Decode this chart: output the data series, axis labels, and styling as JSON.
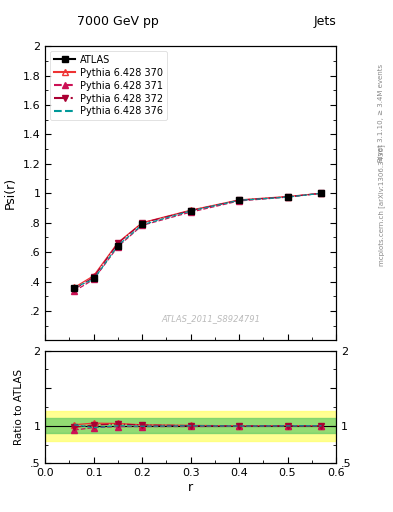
{
  "title": "7000 GeV pp",
  "title_right": "Jets",
  "ylabel_main": "Psi(r)",
  "ylabel_ratio": "Ratio to ATLAS",
  "xlabel": "r",
  "watermark": "ATLAS_2011_S8924791",
  "x_data": [
    0.06,
    0.1,
    0.15,
    0.2,
    0.3,
    0.4,
    0.5,
    0.57
  ],
  "atlas_y": [
    0.355,
    0.425,
    0.645,
    0.79,
    0.88,
    0.955,
    0.975,
    1.0
  ],
  "atlas_yerr": [
    0.008,
    0.008,
    0.008,
    0.008,
    0.008,
    0.008,
    0.008,
    0.008
  ],
  "p370_y": [
    0.36,
    0.44,
    0.665,
    0.8,
    0.885,
    0.955,
    0.978,
    1.0
  ],
  "p371_y": [
    0.335,
    0.415,
    0.638,
    0.782,
    0.872,
    0.948,
    0.974,
    1.0
  ],
  "p372_y": [
    0.348,
    0.43,
    0.66,
    0.798,
    0.882,
    0.953,
    0.976,
    1.0
  ],
  "p376_y": [
    0.36,
    0.415,
    0.645,
    0.786,
    0.88,
    0.952,
    0.974,
    1.0
  ],
  "atlas_color": "#000000",
  "p370_color": "#ee3333",
  "p371_color": "#cc1155",
  "p372_color": "#aa0033",
  "p376_color": "#009999",
  "ylim_main": [
    0.0,
    2.0
  ],
  "ylim_ratio": [
    0.5,
    2.0
  ],
  "xlim": [
    0.0,
    0.6
  ],
  "band_yellow": [
    0.8,
    1.2
  ],
  "band_green": [
    0.9,
    1.1
  ],
  "right_text1": "Rivet 3.1.10, ≥ 3.4M events",
  "right_text2": "mcplots.cern.ch [arXiv:1306.3436]"
}
